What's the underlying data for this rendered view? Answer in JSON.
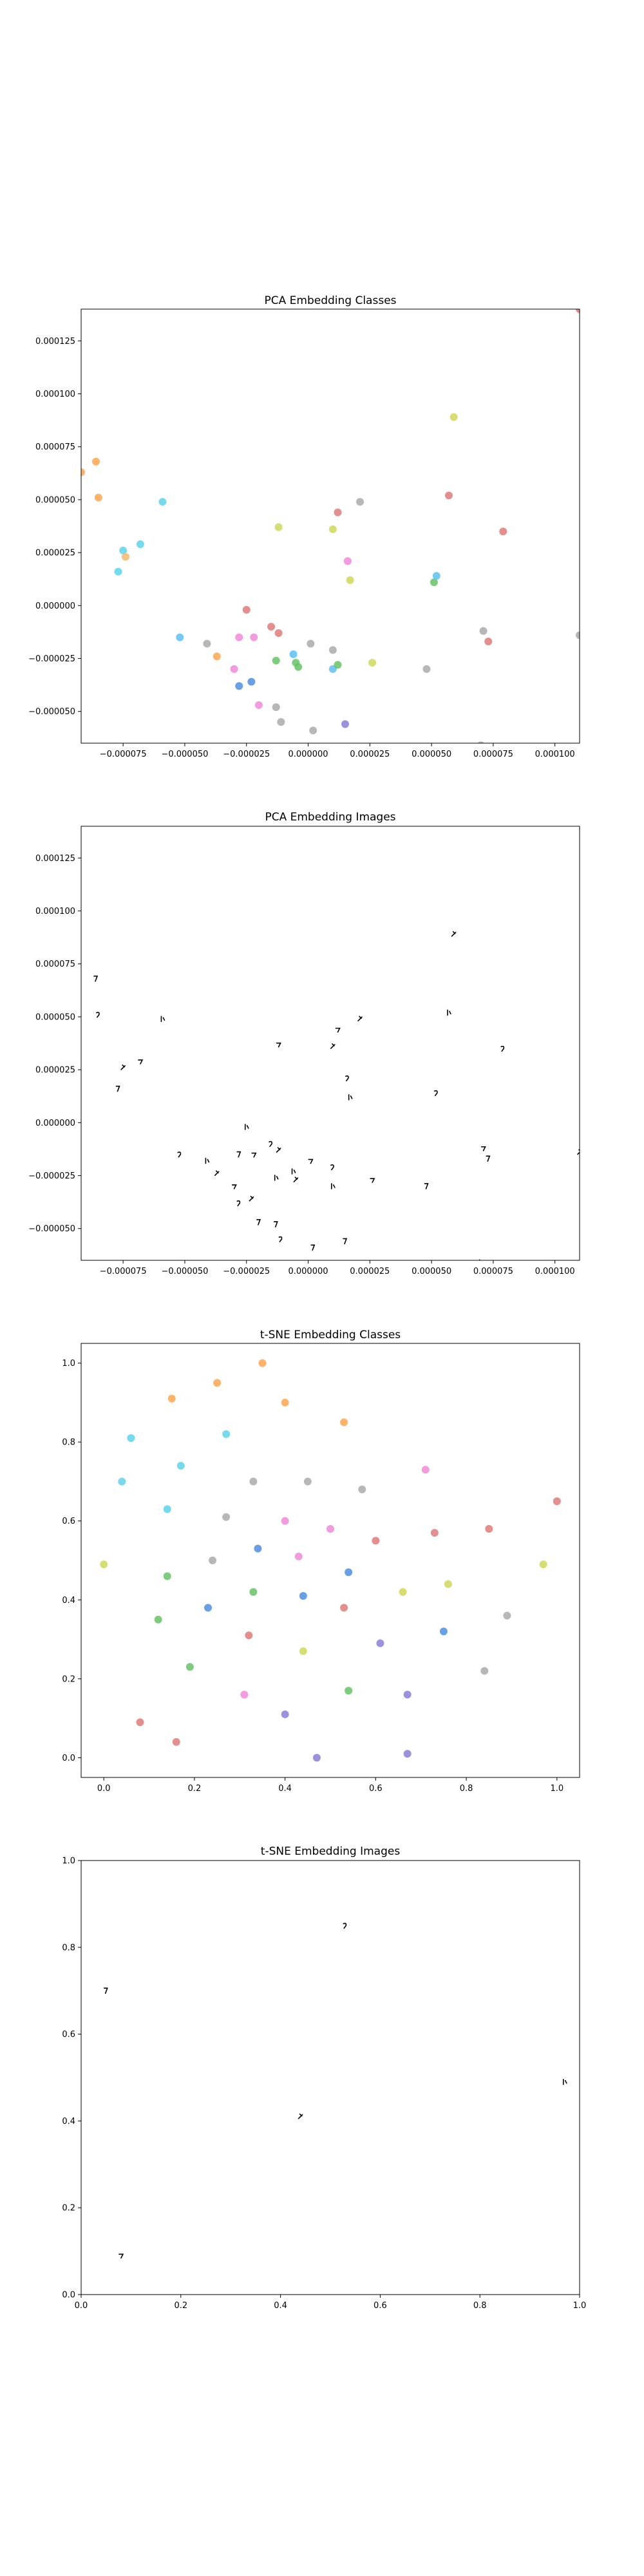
{
  "chart_data": [
    {
      "type": "scatter",
      "title": "PCA Embedding Classes",
      "xlabel": "",
      "ylabel": "",
      "xlim": [
        -9.2e-05,
        0.00011
      ],
      "ylim": [
        -6.5e-05,
        0.00014
      ],
      "xticks": [
        -7.5e-05,
        -5e-05,
        -2.5e-05,
        0.0,
        2.5e-05,
        5e-05,
        7.5e-05,
        0.0001
      ],
      "xtick_labels": [
        "−0.000075",
        "−0.000050",
        "−0.000025",
        "0.000000",
        "0.000025",
        "0.000050",
        "0.000075",
        "0.000100"
      ],
      "yticks": [
        -5e-05,
        -2.5e-05,
        0.0,
        2.5e-05,
        5e-05,
        7.5e-05,
        0.0001,
        0.000125
      ],
      "ytick_labels": [
        "−0.000050",
        "−0.000025",
        "0.000000",
        "0.000025",
        "0.000050",
        "0.000075",
        "0.000100",
        "0.000125"
      ],
      "grid": false,
      "points": [
        {
          "x": -9.2e-05,
          "y": 6.3e-05,
          "color": "#ffa64d"
        },
        {
          "x": -8.6e-05,
          "y": 6.8e-05,
          "color": "#ffa64d"
        },
        {
          "x": -8.5e-05,
          "y": 5.1e-05,
          "color": "#ffa64d"
        },
        {
          "x": -5.9e-05,
          "y": 4.9e-05,
          "color": "#5dd4e8"
        },
        {
          "x": -7.5e-05,
          "y": 2.6e-05,
          "color": "#5dd4e8"
        },
        {
          "x": -7.4e-05,
          "y": 2.3e-05,
          "color": "#f5b96e"
        },
        {
          "x": -6.8e-05,
          "y": 2.9e-05,
          "color": "#5dd4e8"
        },
        {
          "x": -7.7e-05,
          "y": 1.6e-05,
          "color": "#5dd4e8"
        },
        {
          "x": -5.2e-05,
          "y": -1.5e-05,
          "color": "#5dc0f0"
        },
        {
          "x": -4.1e-05,
          "y": -1.8e-05,
          "color": "#aaaaaa"
        },
        {
          "x": -3.7e-05,
          "y": -2.4e-05,
          "color": "#ffa64d"
        },
        {
          "x": -3e-05,
          "y": -3e-05,
          "color": "#f08ad8"
        },
        {
          "x": -2.8e-05,
          "y": -1.5e-05,
          "color": "#f08ad8"
        },
        {
          "x": -2.8e-05,
          "y": -3.8e-05,
          "color": "#4f8fe0"
        },
        {
          "x": -2.5e-05,
          "y": -2e-06,
          "color": "#e07a7a"
        },
        {
          "x": -2.3e-05,
          "y": -3.6e-05,
          "color": "#4f8fe0"
        },
        {
          "x": -2.2e-05,
          "y": -1.5e-05,
          "color": "#f08ad8"
        },
        {
          "x": -2e-05,
          "y": -4.7e-05,
          "color": "#f08ad8"
        },
        {
          "x": -1.5e-05,
          "y": -1e-05,
          "color": "#e07a7a"
        },
        {
          "x": -1.3e-05,
          "y": -2.6e-05,
          "color": "#66c266"
        },
        {
          "x": -1.2e-05,
          "y": -1.3e-05,
          "color": "#e07a7a"
        },
        {
          "x": -1.2e-05,
          "y": 3.7e-05,
          "color": "#cfd85a"
        },
        {
          "x": -1.3e-05,
          "y": -4.8e-05,
          "color": "#aaaaaa"
        },
        {
          "x": -1.1e-05,
          "y": -5.5e-05,
          "color": "#aaaaaa"
        },
        {
          "x": -6e-06,
          "y": -2.3e-05,
          "color": "#5dc0f0"
        },
        {
          "x": -5e-06,
          "y": -2.7e-05,
          "color": "#66c266"
        },
        {
          "x": -4e-06,
          "y": -2.9e-05,
          "color": "#66c266"
        },
        {
          "x": 1e-06,
          "y": -1.8e-05,
          "color": "#aaaaaa"
        },
        {
          "x": 2e-06,
          "y": -5.9e-05,
          "color": "#aaaaaa"
        },
        {
          "x": 1e-05,
          "y": -2.1e-05,
          "color": "#aaaaaa"
        },
        {
          "x": 1e-05,
          "y": -3e-05,
          "color": "#5dc0f0"
        },
        {
          "x": 1e-05,
          "y": 3.6e-05,
          "color": "#cfd85a"
        },
        {
          "x": 1.2e-05,
          "y": 4.4e-05,
          "color": "#e07a7a"
        },
        {
          "x": 1.2e-05,
          "y": -2.8e-05,
          "color": "#66c266"
        },
        {
          "x": 1.5e-05,
          "y": -5.6e-05,
          "color": "#8a7fd8"
        },
        {
          "x": 1.6e-05,
          "y": 2.1e-05,
          "color": "#f08ad8"
        },
        {
          "x": 1.7e-05,
          "y": 1.2e-05,
          "color": "#cfd85a"
        },
        {
          "x": 2.1e-05,
          "y": 4.9e-05,
          "color": "#aaaaaa"
        },
        {
          "x": 2.6e-05,
          "y": -2.7e-05,
          "color": "#cfd85a"
        },
        {
          "x": 4.8e-05,
          "y": -3e-05,
          "color": "#aaaaaa"
        },
        {
          "x": 5.1e-05,
          "y": 1.1e-05,
          "color": "#66c266"
        },
        {
          "x": 5.2e-05,
          "y": 1.4e-05,
          "color": "#5dc0f0"
        },
        {
          "x": 5.7e-05,
          "y": 5.2e-05,
          "color": "#e07a7a"
        },
        {
          "x": 5.9e-05,
          "y": 8.9e-05,
          "color": "#cfd85a"
        },
        {
          "x": 7.1e-05,
          "y": -1.2e-05,
          "color": "#aaaaaa"
        },
        {
          "x": 7.3e-05,
          "y": -1.7e-05,
          "color": "#e07a7a"
        },
        {
          "x": 7.9e-05,
          "y": 3.5e-05,
          "color": "#e07a7a"
        },
        {
          "x": 7e-05,
          "y": -6.6e-05,
          "color": "#aaaaaa"
        },
        {
          "x": 0.00011,
          "y": -1.4e-05,
          "color": "#aaaaaa"
        },
        {
          "x": 0.00011,
          "y": 0.00014,
          "color": "#e07a7a"
        }
      ]
    },
    {
      "type": "scatter",
      "title": "PCA Embedding Images",
      "xlabel": "",
      "ylabel": "",
      "xlim": [
        -9.2e-05,
        0.00011
      ],
      "ylim": [
        -6.5e-05,
        0.00014
      ],
      "xticks": [
        -7.5e-05,
        -5e-05,
        -2.5e-05,
        0.0,
        2.5e-05,
        5e-05,
        7.5e-05,
        0.0001
      ],
      "xtick_labels": [
        "−0.000075",
        "−0.000050",
        "−0.000025",
        "0.000000",
        "0.000025",
        "0.000050",
        "0.000075",
        "0.000100"
      ],
      "yticks": [
        -5e-05,
        -2.5e-05,
        0.0,
        2.5e-05,
        5e-05,
        7.5e-05,
        0.0001,
        0.000125
      ],
      "ytick_labels": [
        "−0.000050",
        "−0.000025",
        "0.000000",
        "0.000025",
        "0.000050",
        "0.000075",
        "0.000100",
        "0.000125"
      ],
      "grid": false,
      "marker": "image-glyph",
      "points": [
        {
          "x": -8.6e-05,
          "y": 6.8e-05
        },
        {
          "x": -8.5e-05,
          "y": 5.1e-05
        },
        {
          "x": -5.9e-05,
          "y": 4.9e-05
        },
        {
          "x": -7.5e-05,
          "y": 2.6e-05
        },
        {
          "x": -6.8e-05,
          "y": 2.9e-05
        },
        {
          "x": -7.7e-05,
          "y": 1.6e-05
        },
        {
          "x": -5.2e-05,
          "y": -1.5e-05
        },
        {
          "x": -4.1e-05,
          "y": -1.8e-05
        },
        {
          "x": -3.7e-05,
          "y": -2.4e-05
        },
        {
          "x": -3e-05,
          "y": -3e-05
        },
        {
          "x": -2.8e-05,
          "y": -1.5e-05
        },
        {
          "x": -2.8e-05,
          "y": -3.8e-05
        },
        {
          "x": -2.5e-05,
          "y": -2e-06
        },
        {
          "x": -2.3e-05,
          "y": -3.6e-05
        },
        {
          "x": -2.2e-05,
          "y": -1.5e-05
        },
        {
          "x": -2e-05,
          "y": -4.7e-05
        },
        {
          "x": -1.5e-05,
          "y": -1e-05
        },
        {
          "x": -1.3e-05,
          "y": -2.6e-05
        },
        {
          "x": -1.2e-05,
          "y": -1.3e-05
        },
        {
          "x": -1.2e-05,
          "y": 3.7e-05
        },
        {
          "x": -1.3e-05,
          "y": -4.8e-05
        },
        {
          "x": -1.1e-05,
          "y": -5.5e-05
        },
        {
          "x": -6e-06,
          "y": -2.3e-05
        },
        {
          "x": -5e-06,
          "y": -2.7e-05
        },
        {
          "x": 1e-06,
          "y": -1.8e-05
        },
        {
          "x": 2e-06,
          "y": -5.9e-05
        },
        {
          "x": 1e-05,
          "y": -2.1e-05
        },
        {
          "x": 1e-05,
          "y": -3e-05
        },
        {
          "x": 1e-05,
          "y": 3.6e-05
        },
        {
          "x": 1.2e-05,
          "y": 4.4e-05
        },
        {
          "x": 1.5e-05,
          "y": -5.6e-05
        },
        {
          "x": 1.6e-05,
          "y": 2.1e-05
        },
        {
          "x": 1.7e-05,
          "y": 1.2e-05
        },
        {
          "x": 2.1e-05,
          "y": 4.9e-05
        },
        {
          "x": 2.6e-05,
          "y": -2.7e-05
        },
        {
          "x": 4.8e-05,
          "y": -3e-05
        },
        {
          "x": 5.2e-05,
          "y": 1.4e-05
        },
        {
          "x": 5.7e-05,
          "y": 5.2e-05
        },
        {
          "x": 5.9e-05,
          "y": 8.9e-05
        },
        {
          "x": 7.1e-05,
          "y": -1.2e-05
        },
        {
          "x": 7.3e-05,
          "y": -1.7e-05
        },
        {
          "x": 7.9e-05,
          "y": 3.5e-05
        },
        {
          "x": 7e-05,
          "y": -6.6e-05
        },
        {
          "x": 0.00011,
          "y": -1.4e-05
        },
        {
          "x": 0.00011,
          "y": 0.00014
        }
      ]
    },
    {
      "type": "scatter",
      "title": "t-SNE Embedding Classes",
      "xlabel": "",
      "ylabel": "",
      "xlim": [
        -0.05,
        1.05
      ],
      "ylim": [
        -0.05,
        1.05
      ],
      "xticks": [
        0.0,
        0.2,
        0.4,
        0.6,
        0.8,
        1.0
      ],
      "xtick_labels": [
        "0.0",
        "0.2",
        "0.4",
        "0.6",
        "0.8",
        "1.0"
      ],
      "yticks": [
        0.0,
        0.2,
        0.4,
        0.6,
        0.8,
        1.0
      ],
      "ytick_labels": [
        "0.0",
        "0.2",
        "0.4",
        "0.6",
        "0.8",
        "1.0"
      ],
      "grid": false,
      "points": [
        {
          "x": 0.35,
          "y": 1.0,
          "color": "#ffa64d"
        },
        {
          "x": 0.25,
          "y": 0.95,
          "color": "#ffa64d"
        },
        {
          "x": 0.15,
          "y": 0.91,
          "color": "#ffa64d"
        },
        {
          "x": 0.4,
          "y": 0.9,
          "color": "#ffa64d"
        },
        {
          "x": 0.53,
          "y": 0.85,
          "color": "#ffa64d"
        },
        {
          "x": 0.06,
          "y": 0.81,
          "color": "#5dd4e8"
        },
        {
          "x": 0.27,
          "y": 0.82,
          "color": "#5dd4e8"
        },
        {
          "x": 0.17,
          "y": 0.74,
          "color": "#5dd4e8"
        },
        {
          "x": 0.04,
          "y": 0.7,
          "color": "#5dd4e8"
        },
        {
          "x": 0.14,
          "y": 0.63,
          "color": "#5dd4e8"
        },
        {
          "x": 0.71,
          "y": 0.73,
          "color": "#f08ad8"
        },
        {
          "x": 0.33,
          "y": 0.7,
          "color": "#aaaaaa"
        },
        {
          "x": 0.45,
          "y": 0.7,
          "color": "#aaaaaa"
        },
        {
          "x": 0.57,
          "y": 0.68,
          "color": "#aaaaaa"
        },
        {
          "x": 1.0,
          "y": 0.65,
          "color": "#e07a7a"
        },
        {
          "x": 0.27,
          "y": 0.61,
          "color": "#aaaaaa"
        },
        {
          "x": 0.4,
          "y": 0.6,
          "color": "#f08ad8"
        },
        {
          "x": 0.5,
          "y": 0.58,
          "color": "#f08ad8"
        },
        {
          "x": 0.85,
          "y": 0.58,
          "color": "#e07a7a"
        },
        {
          "x": 0.73,
          "y": 0.57,
          "color": "#e07a7a"
        },
        {
          "x": 0.6,
          "y": 0.55,
          "color": "#e07a7a"
        },
        {
          "x": 0.34,
          "y": 0.53,
          "color": "#4f8fe0"
        },
        {
          "x": 0.43,
          "y": 0.51,
          "color": "#f08ad8"
        },
        {
          "x": 0.24,
          "y": 0.5,
          "color": "#aaaaaa"
        },
        {
          "x": 0.0,
          "y": 0.49,
          "color": "#cfd85a"
        },
        {
          "x": 0.97,
          "y": 0.49,
          "color": "#cfd85a"
        },
        {
          "x": 0.54,
          "y": 0.47,
          "color": "#4f8fe0"
        },
        {
          "x": 0.14,
          "y": 0.46,
          "color": "#66c266"
        },
        {
          "x": 0.76,
          "y": 0.44,
          "color": "#cfd85a"
        },
        {
          "x": 0.33,
          "y": 0.42,
          "color": "#66c266"
        },
        {
          "x": 0.66,
          "y": 0.42,
          "color": "#cfd85a"
        },
        {
          "x": 0.44,
          "y": 0.41,
          "color": "#4f8fe0"
        },
        {
          "x": 0.23,
          "y": 0.38,
          "color": "#4f8fe0"
        },
        {
          "x": 0.53,
          "y": 0.38,
          "color": "#e07a7a"
        },
        {
          "x": 0.89,
          "y": 0.36,
          "color": "#aaaaaa"
        },
        {
          "x": 0.12,
          "y": 0.35,
          "color": "#66c266"
        },
        {
          "x": 0.75,
          "y": 0.32,
          "color": "#4f8fe0"
        },
        {
          "x": 0.32,
          "y": 0.31,
          "color": "#e07a7a"
        },
        {
          "x": 0.61,
          "y": 0.29,
          "color": "#8a7fd8"
        },
        {
          "x": 0.44,
          "y": 0.27,
          "color": "#cfd85a"
        },
        {
          "x": 0.19,
          "y": 0.23,
          "color": "#66c266"
        },
        {
          "x": 0.84,
          "y": 0.22,
          "color": "#aaaaaa"
        },
        {
          "x": 0.54,
          "y": 0.17,
          "color": "#66c266"
        },
        {
          "x": 0.31,
          "y": 0.16,
          "color": "#f08ad8"
        },
        {
          "x": 0.67,
          "y": 0.16,
          "color": "#8a7fd8"
        },
        {
          "x": 0.4,
          "y": 0.11,
          "color": "#8a7fd8"
        },
        {
          "x": 0.08,
          "y": 0.09,
          "color": "#e07a7a"
        },
        {
          "x": 0.16,
          "y": 0.04,
          "color": "#e07a7a"
        },
        {
          "x": 0.47,
          "y": 0.0,
          "color": "#8a7fd8"
        },
        {
          "x": 0.67,
          "y": 0.01,
          "color": "#8a7fd8"
        }
      ]
    },
    {
      "type": "scatter",
      "title": "t-SNE Embedding Images",
      "xlabel": "",
      "ylabel": "",
      "xlim": [
        0.0,
        1.0
      ],
      "ylim": [
        0.0,
        1.0
      ],
      "xticks": [
        0.0,
        0.2,
        0.4,
        0.6,
        0.8,
        1.0
      ],
      "xtick_labels": [
        "0.0",
        "0.2",
        "0.4",
        "0.6",
        "0.8",
        "1.0"
      ],
      "yticks": [
        0.0,
        0.2,
        0.4,
        0.6,
        0.8,
        1.0
      ],
      "ytick_labels": [
        "0.0",
        "0.2",
        "0.4",
        "0.6",
        "0.8",
        "1.0"
      ],
      "grid": false,
      "marker": "image-glyph",
      "points": [
        {
          "x": 0.05,
          "y": 0.7
        },
        {
          "x": 0.53,
          "y": 0.85
        },
        {
          "x": 0.97,
          "y": 0.49
        },
        {
          "x": 0.44,
          "y": 0.41
        },
        {
          "x": 0.08,
          "y": 0.09
        }
      ]
    }
  ]
}
